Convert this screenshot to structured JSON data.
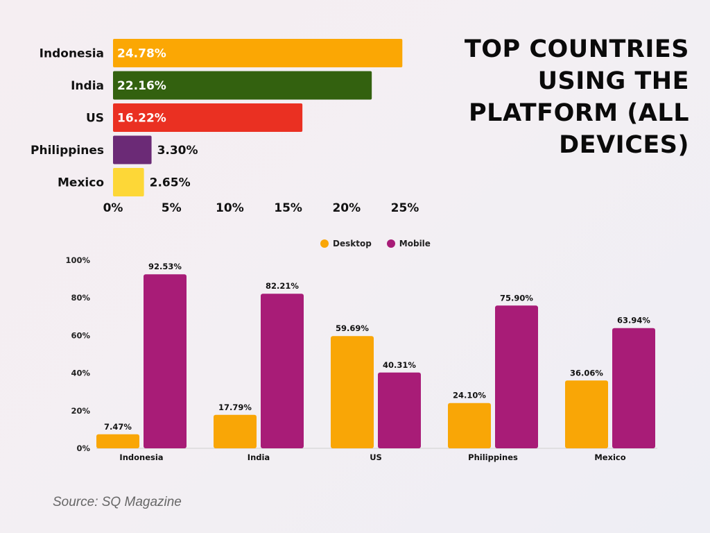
{
  "title_lines": [
    "TOP COUNTRIES",
    "USING THE",
    "PLATFORM (ALL",
    "DEVICES)"
  ],
  "source": "Source: SQ Magazine",
  "colors": {
    "desktop": "#f9a606",
    "mobile": "#a81c77",
    "indonesia": "#fba704",
    "india": "#33610f",
    "us": "#ea3022",
    "philippines": "#6b2a76",
    "mexico": "#fdd737"
  },
  "chart_data": [
    {
      "type": "bar",
      "orientation": "horizontal",
      "categories": [
        "Indonesia",
        "India",
        "US",
        "Philippines",
        "Mexico"
      ],
      "values": [
        24.78,
        22.16,
        16.22,
        3.3,
        2.65
      ],
      "value_labels": [
        "24.78%",
        "22.16%",
        "16.22%",
        "3.30%",
        "2.65%"
      ],
      "bar_colors": [
        "#fba704",
        "#33610f",
        "#ea3022",
        "#6b2a76",
        "#fdd737"
      ],
      "xlim": [
        0,
        25
      ],
      "xticks": [
        0,
        5,
        10,
        15,
        20,
        25
      ],
      "xtick_labels": [
        "0%",
        "5%",
        "10%",
        "15%",
        "20%",
        "25%"
      ],
      "grid": false
    },
    {
      "type": "bar",
      "orientation": "vertical",
      "categories": [
        "Indonesia",
        "India",
        "US",
        "Philippines",
        "Mexico"
      ],
      "series": [
        {
          "name": "Desktop",
          "values": [
            7.47,
            17.79,
            59.69,
            24.1,
            36.06
          ],
          "value_labels": [
            "7.47%",
            "17.79%",
            "59.69%",
            "24.10%",
            "36.06%"
          ],
          "color": "#f9a606"
        },
        {
          "name": "Mobile",
          "values": [
            92.53,
            82.21,
            40.31,
            75.9,
            63.94
          ],
          "value_labels": [
            "92.53%",
            "82.21%",
            "40.31%",
            "75.90%",
            "63.94%"
          ],
          "color": "#a81c77"
        }
      ],
      "ylim": [
        0,
        100
      ],
      "yticks": [
        0,
        20,
        40,
        60,
        80,
        100
      ],
      "ytick_labels": [
        "0%",
        "20%",
        "40%",
        "60%",
        "80%",
        "100%"
      ],
      "legend": "top-center",
      "grid": false
    }
  ]
}
